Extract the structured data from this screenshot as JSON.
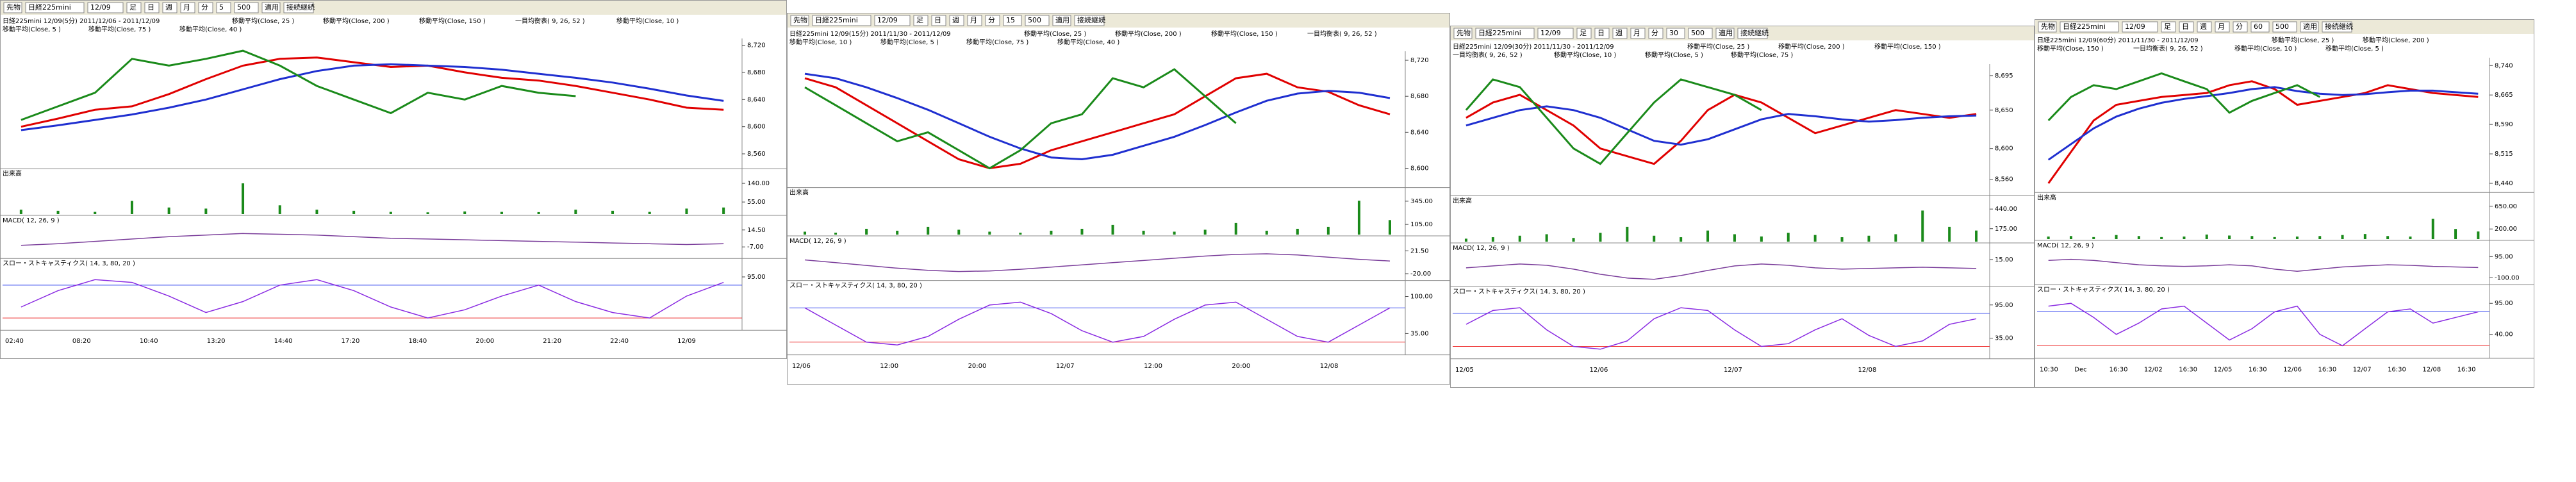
{
  "panels": [
    {
      "toolbar": [
        "先物",
        "日経225mini",
        "12/09",
        "足",
        "日",
        "週",
        "月",
        "分",
        "5",
        "500",
        "適用",
        "接続継続"
      ],
      "header": [
        "日経225mini 12/09(5分) 2011/12/06 - 2011/12/09",
        "移動平均(Close, 25 )",
        "移動平均(Close, 200 )",
        "移動平均(Close, 150 )",
        "一目均衡表( 9, 26, 52 )",
        "移動平均(Close, 10 )",
        "移動平均(Close, 5 )",
        "移動平均(Close, 75 )",
        "移動平均(Close, 40 )"
      ],
      "price": {
        "ylim": [
          8540,
          8730
        ],
        "yticks": [
          {
            "value": 8720,
            "label": "8,720"
          },
          {
            "value": 8680,
            "label": "8,680"
          },
          {
            "value": 8640,
            "label": "8,640"
          },
          {
            "value": 8600,
            "label": "8,600"
          },
          {
            "value": 8560,
            "label": "8,560"
          }
        ],
        "series": [
          {
            "color": "#e00000",
            "values": [
              8600,
              8612,
              8625,
              8630,
              8648,
              8670,
              8690,
              8700,
              8702,
              8695,
              8688,
              8690,
              8680,
              8672,
              8668,
              8660,
              8650,
              8640,
              8628,
              8625
            ]
          },
          {
            "color": "#1f2fd0",
            "values": [
              8595,
              8602,
              8610,
              8618,
              8628,
              8640,
              8655,
              8670,
              8682,
              8690,
              8692,
              8690,
              8688,
              8684,
              8678,
              8672,
              8665,
              8656,
              8646,
              8638
            ]
          },
          {
            "color": "#1a8a1a",
            "values": [
              8610,
              8630,
              8650,
              8700,
              8690,
              8700,
              8712,
              8690,
              8660,
              8640,
              8620,
              8650,
              8640,
              8660,
              8650,
              8645,
              null,
              null,
              null,
              null
            ]
          }
        ]
      },
      "volume": {
        "label": "出来高",
        "color": "#1a8a1a",
        "ylim": [
          0,
          160
        ],
        "yticks": [
          {
            "value": 140,
            "label": "140.00"
          },
          {
            "value": 55,
            "label": "55.00"
          }
        ],
        "values": [
          20,
          15,
          10,
          60,
          30,
          25,
          140,
          40,
          20,
          15,
          10,
          8,
          12,
          10,
          9,
          20,
          15,
          10,
          25,
          30
        ]
      },
      "macd": {
        "label": "MACD( 12, 26, 9 )",
        "color": "#7a3d9a",
        "ylim": [
          -20,
          20
        ],
        "yticks": [
          {
            "value": 14.5,
            "label": "14.50"
          },
          {
            "value": -7,
            "label": "-7.00"
          }
        ],
        "values": [
          -5,
          -3,
          0,
          3,
          6,
          8,
          10,
          9,
          8,
          6,
          4,
          3,
          2,
          1,
          0,
          -1,
          -2,
          -3,
          -4,
          -3
        ]
      },
      "stoch": {
        "label": "スロー・ストキャスティクス( 14, 3, 80, 20 )",
        "color": "#8a2be2",
        "ylim": [
          0,
          110
        ],
        "yticks": [
          {
            "value": 95,
            "label": "95.00"
          }
        ],
        "levels": [
          {
            "value": 80,
            "color": "#3344ee"
          },
          {
            "value": 20,
            "color": "#ee3333"
          }
        ],
        "values": [
          40,
          70,
          90,
          85,
          60,
          30,
          50,
          80,
          90,
          70,
          40,
          20,
          35,
          60,
          80,
          50,
          30,
          20,
          60,
          85
        ]
      },
      "xlabels": [
        "02:40",
        "08:20",
        "10:40",
        "13:20",
        "14:40",
        "17:20",
        "18:40",
        "20:00",
        "21:20",
        "22:40",
        "12/09"
      ]
    },
    {
      "toolbar": [
        "先物",
        "日経225mini",
        "12/09",
        "足",
        "日",
        "週",
        "月",
        "分",
        "15",
        "500",
        "適用",
        "接続継続"
      ],
      "header": [
        "日経225mini 12/09(15分) 2011/11/30 - 2011/12/09",
        "移動平均(Close, 25 )",
        "移動平均(Close, 200 )",
        "移動平均(Close, 150 )",
        "一目均衡表( 9, 26, 52 )",
        "移動平均(Close, 10 )",
        "移動平均(Close, 5 )",
        "移動平均(Close, 75 )",
        "移動平均(Close, 40 )"
      ],
      "price": {
        "ylim": [
          8580,
          8730
        ],
        "yticks": [
          {
            "value": 8720,
            "label": "8,720"
          },
          {
            "value": 8680,
            "label": "8,680"
          },
          {
            "value": 8640,
            "label": "8,640"
          },
          {
            "value": 8600,
            "label": "8,600"
          }
        ],
        "series": [
          {
            "color": "#e00000",
            "values": [
              8700,
              8690,
              8670,
              8650,
              8630,
              8610,
              8600,
              8605,
              8620,
              8630,
              8640,
              8650,
              8660,
              8680,
              8700,
              8705,
              8690,
              8685,
              8670,
              8660
            ]
          },
          {
            "color": "#1f2fd0",
            "values": [
              8705,
              8700,
              8690,
              8678,
              8665,
              8650,
              8635,
              8622,
              8612,
              8610,
              8615,
              8625,
              8635,
              8648,
              8662,
              8675,
              8683,
              8686,
              8684,
              8678
            ]
          },
          {
            "color": "#1a8a1a",
            "values": [
              8690,
              8670,
              8650,
              8630,
              8640,
              8620,
              8600,
              8620,
              8650,
              8660,
              8700,
              8690,
              8710,
              8680,
              8650,
              null,
              null,
              null,
              null,
              null
            ]
          }
        ]
      },
      "volume": {
        "label": "出来高",
        "color": "#1a8a1a",
        "ylim": [
          0,
          380
        ],
        "yticks": [
          {
            "value": 345,
            "label": "345.00"
          },
          {
            "value": 105,
            "label": "105.00"
          }
        ],
        "values": [
          30,
          20,
          60,
          40,
          80,
          50,
          30,
          20,
          40,
          60,
          100,
          40,
          30,
          50,
          120,
          40,
          60,
          80,
          350,
          150
        ]
      },
      "macd": {
        "label": "MACD( 12, 26, 9 )",
        "color": "#7a3d9a",
        "ylim": [
          -30,
          30
        ],
        "yticks": [
          {
            "value": 21.5,
            "label": "21.50"
          },
          {
            "value": -20,
            "label": "-20.00"
          }
        ],
        "values": [
          5,
          0,
          -5,
          -10,
          -14,
          -16,
          -15,
          -12,
          -8,
          -4,
          0,
          4,
          8,
          12,
          15,
          16,
          14,
          10,
          6,
          3
        ]
      },
      "stoch": {
        "label": "スロー・ストキャスティクス( 14, 3, 80, 20 )",
        "color": "#8a2be2",
        "ylim": [
          0,
          110
        ],
        "yticks": [
          {
            "value": 100,
            "label": "100.00"
          },
          {
            "value": 35,
            "label": "35.00"
          }
        ],
        "levels": [
          {
            "value": 80,
            "color": "#3344ee"
          },
          {
            "value": 20,
            "color": "#ee3333"
          }
        ],
        "values": [
          80,
          50,
          20,
          15,
          30,
          60,
          85,
          90,
          70,
          40,
          20,
          30,
          60,
          85,
          90,
          60,
          30,
          20,
          50,
          80
        ]
      },
      "xlabels": [
        "12/06",
        "12:00",
        "20:00",
        "12/07",
        "12:00",
        "20:00",
        "12/08"
      ]
    },
    {
      "toolbar": [
        "先物",
        "日経225mini",
        "12/09",
        "足",
        "日",
        "週",
        "月",
        "分",
        "30",
        "500",
        "適用",
        "接続継続"
      ],
      "header": [
        "日経225mini 12/09(30分) 2011/11/30 - 2011/12/09",
        "移動平均(Close, 25 )",
        "移動平均(Close, 200 )",
        "移動平均(Close, 150 )",
        "一目均衡表( 9, 26, 52 )",
        "移動平均(Close, 10 )",
        "移動平均(Close, 5 )",
        "移動平均(Close, 75 )"
      ],
      "price": {
        "ylim": [
          8540,
          8710
        ],
        "yticks": [
          {
            "value": 8695,
            "label": "8,695"
          },
          {
            "value": 8650,
            "label": "8,650"
          },
          {
            "value": 8600,
            "label": "8,600"
          },
          {
            "value": 8560,
            "label": "8,560"
          }
        ],
        "series": [
          {
            "color": "#e00000",
            "values": [
              8640,
              8660,
              8670,
              8650,
              8630,
              8600,
              8590,
              8580,
              8610,
              8650,
              8670,
              8660,
              8640,
              8620,
              8630,
              8640,
              8650,
              8645,
              8640,
              8645
            ]
          },
          {
            "color": "#1f2fd0",
            "values": [
              8630,
              8640,
              8650,
              8655,
              8650,
              8640,
              8625,
              8610,
              8605,
              8612,
              8625,
              8638,
              8645,
              8642,
              8638,
              8635,
              8637,
              8640,
              8642,
              8643
            ]
          },
          {
            "color": "#1a8a1a",
            "values": [
              8650,
              8690,
              8680,
              8640,
              8600,
              8580,
              8620,
              8660,
              8690,
              8680,
              8670,
              8650,
              null,
              null,
              null,
              null,
              null,
              null,
              null,
              null
            ]
          }
        ]
      },
      "volume": {
        "label": "出来高",
        "color": "#1a8a1a",
        "ylim": [
          0,
          480
        ],
        "yticks": [
          {
            "value": 440,
            "label": "440.00"
          },
          {
            "value": 175,
            "label": "175.00"
          }
        ],
        "values": [
          40,
          60,
          80,
          100,
          50,
          120,
          200,
          80,
          60,
          150,
          100,
          70,
          120,
          90,
          60,
          80,
          100,
          420,
          200,
          150
        ]
      },
      "macd": {
        "label": "MACD( 12, 26, 9 )",
        "color": "#7a3d9a",
        "ylim": [
          -25,
          25
        ],
        "yticks": [
          {
            "value": 15,
            "label": "15.00"
          }
        ],
        "values": [
          2,
          5,
          8,
          6,
          0,
          -8,
          -14,
          -16,
          -10,
          -2,
          5,
          8,
          6,
          2,
          0,
          1,
          2,
          3,
          2,
          1
        ]
      },
      "stoch": {
        "label": "スロー・ストキャスティクス( 14, 3, 80, 20 )",
        "color": "#8a2be2",
        "ylim": [
          0,
          110
        ],
        "yticks": [
          {
            "value": 95,
            "label": "95.00"
          },
          {
            "value": 35,
            "label": "35.00"
          }
        ],
        "levels": [
          {
            "value": 80,
            "color": "#3344ee"
          },
          {
            "value": 20,
            "color": "#ee3333"
          }
        ],
        "values": [
          60,
          85,
          90,
          50,
          20,
          15,
          30,
          70,
          90,
          85,
          50,
          20,
          25,
          50,
          70,
          40,
          20,
          30,
          60,
          70
        ]
      },
      "xlabels": [
        "12/05",
        "12/06",
        "12/07",
        "12/08"
      ]
    },
    {
      "toolbar": [
        "先物",
        "日経225mini",
        "12/09",
        "足",
        "日",
        "週",
        "月",
        "分",
        "60",
        "500",
        "適用",
        "接続継続"
      ],
      "header": [
        "日経225mini 12/09(60分) 2011/11/30 - 2011/12/09",
        "移動平均(Close, 25 )",
        "移動平均(Close, 200 )",
        "移動平均(Close, 150 )",
        "一目均衡表( 9, 26, 52 )",
        "移動平均(Close, 10 )",
        "移動平均(Close, 5 )"
      ],
      "price": {
        "ylim": [
          8420,
          8760
        ],
        "yticks": [
          {
            "value": 8740,
            "label": "8,740"
          },
          {
            "value": 8665,
            "label": "8,665"
          },
          {
            "value": 8590,
            "label": "8,590"
          },
          {
            "value": 8515,
            "label": "8,515"
          },
          {
            "value": 8440,
            "label": "8,440"
          }
        ],
        "series": [
          {
            "color": "#e00000",
            "values": [
              8440,
              8520,
              8600,
              8640,
              8650,
              8660,
              8665,
              8670,
              8690,
              8700,
              8680,
              8640,
              8650,
              8660,
              8670,
              8690,
              8680,
              8670,
              8665,
              8660
            ]
          },
          {
            "color": "#1f2fd0",
            "values": [
              8500,
              8540,
              8580,
              8610,
              8630,
              8645,
              8655,
              8662,
              8670,
              8680,
              8685,
              8675,
              8668,
              8665,
              8667,
              8672,
              8676,
              8676,
              8672,
              8668
            ]
          },
          {
            "color": "#1a8a1a",
            "values": [
              8600,
              8660,
              8690,
              8680,
              8700,
              8720,
              8700,
              8680,
              8620,
              8650,
              8670,
              8690,
              8660,
              null,
              null,
              null,
              null,
              null,
              null,
              null
            ]
          }
        ]
      },
      "volume": {
        "label": "出来高",
        "color": "#1a8a1a",
        "ylim": [
          0,
          720
        ],
        "yticks": [
          {
            "value": 650,
            "label": "650.00"
          },
          {
            "value": 200,
            "label": "200.00"
          }
        ],
        "values": [
          50,
          60,
          40,
          80,
          60,
          40,
          50,
          90,
          70,
          60,
          40,
          50,
          60,
          80,
          100,
          60,
          50,
          400,
          200,
          150
        ]
      },
      "macd": {
        "label": "MACD( 12, 26, 9 )",
        "color": "#7a3d9a",
        "ylim": [
          -150,
          150
        ],
        "yticks": [
          {
            "value": 95,
            "label": "95.00"
          },
          {
            "value": -100,
            "label": "-100.00"
          }
        ],
        "values": [
          60,
          70,
          60,
          40,
          20,
          10,
          5,
          10,
          20,
          10,
          -20,
          -40,
          -20,
          0,
          10,
          20,
          15,
          5,
          0,
          -5
        ]
      },
      "stoch": {
        "label": "スロー・ストキャスティクス( 14, 3, 80, 20 )",
        "color": "#8a2be2",
        "ylim": [
          0,
          110
        ],
        "yticks": [
          {
            "value": 95,
            "label": "95.00"
          },
          {
            "value": 40,
            "label": "40.00"
          }
        ],
        "levels": [
          {
            "value": 80,
            "color": "#3344ee"
          },
          {
            "value": 20,
            "color": "#ee3333"
          }
        ],
        "values": [
          90,
          95,
          70,
          40,
          60,
          85,
          90,
          60,
          30,
          50,
          80,
          90,
          40,
          20,
          50,
          80,
          85,
          60,
          70,
          80
        ]
      },
      "xlabels": [
        "10:30",
        "Dec",
        "16:30",
        "12/02",
        "16:30",
        "12/05",
        "16:30",
        "12/06",
        "16:30",
        "12/07",
        "16:30",
        "12/08",
        "16:30"
      ]
    }
  ]
}
